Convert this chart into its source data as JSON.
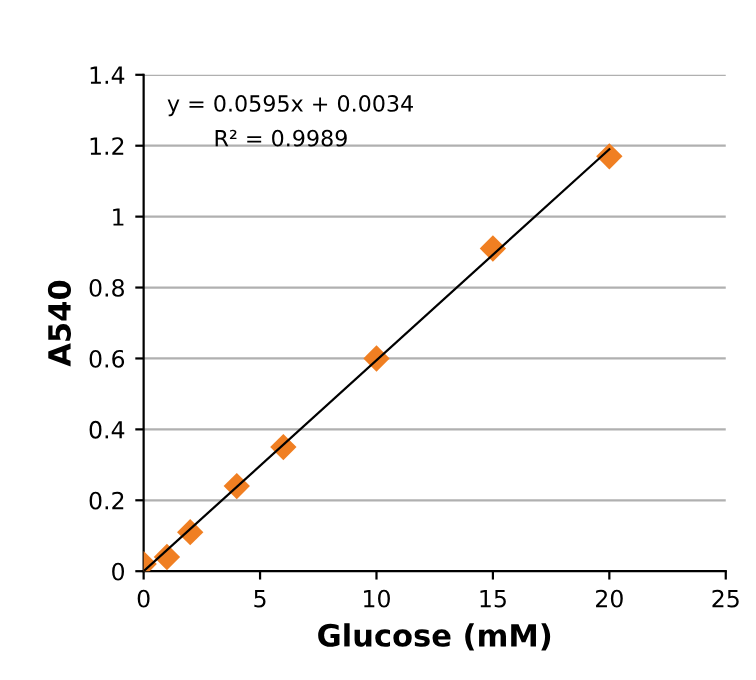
{
  "chart_data": {
    "type": "scatter",
    "xlabel": "Glucose (mM)",
    "ylabel": "A540",
    "annotations": [
      "y = 0.0595x + 0.0034",
      "R² = 0.9989"
    ],
    "series": [
      {
        "color": "#f07f22",
        "marker": "diamond",
        "x": [
          0,
          1,
          2,
          4,
          6,
          10,
          15,
          20
        ],
        "values": [
          0.02,
          0.04,
          0.11,
          0.24,
          0.35,
          0.6,
          0.91,
          1.17
        ]
      },
      {
        "type": "line",
        "color": "#000000",
        "marker": "none",
        "line_style": "solid",
        "x": [
          0,
          20
        ],
        "values": [
          0.0,
          1.19
        ]
      }
    ],
    "xlim": [
      0,
      25
    ],
    "xticks": [
      0,
      5,
      10,
      15,
      20,
      25
    ],
    "ylim": [
      0,
      1.4
    ],
    "yticks": [
      0,
      0.2,
      0.4,
      0.6,
      0.8,
      1,
      1.2,
      1.4
    ],
    "grid": "y",
    "legend": false
  }
}
